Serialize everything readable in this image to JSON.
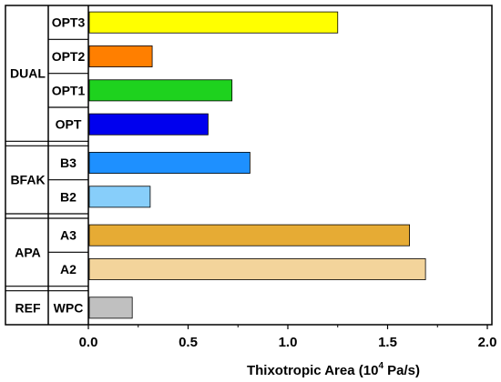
{
  "chart_data": {
    "type": "bar",
    "orientation": "horizontal",
    "xlabel": "Thixotropic Area (10",
    "xlabel_sup": "4",
    "xlabel_suffix": " Pa/s)",
    "xlim": [
      0,
      2.0
    ],
    "xticks": [
      "0.0",
      "0.5",
      "1.0",
      "1.5",
      "2.0"
    ],
    "groups": [
      {
        "name": "DUAL",
        "categories": [
          {
            "label": "OPT3",
            "value": 1.25,
            "color": "#ffff00"
          },
          {
            "label": "OPT2",
            "value": 0.32,
            "color": "#ff7f00"
          },
          {
            "label": "OPT1",
            "value": 0.72,
            "color": "#1ed21e"
          },
          {
            "label": "OPT",
            "value": 0.6,
            "color": "#0000ee"
          }
        ]
      },
      {
        "name": "BFAK",
        "categories": [
          {
            "label": "B3",
            "value": 0.81,
            "color": "#1e90ff"
          },
          {
            "label": "B2",
            "value": 0.31,
            "color": "#87cefa"
          }
        ]
      },
      {
        "name": "APA",
        "categories": [
          {
            "label": "A3",
            "value": 1.61,
            "color": "#e6ab34"
          },
          {
            "label": "A2",
            "value": 1.69,
            "color": "#f3d49b"
          }
        ]
      },
      {
        "name": "REF",
        "categories": [
          {
            "label": "WPC",
            "value": 0.22,
            "color": "#c0c0c0"
          }
        ]
      }
    ]
  }
}
